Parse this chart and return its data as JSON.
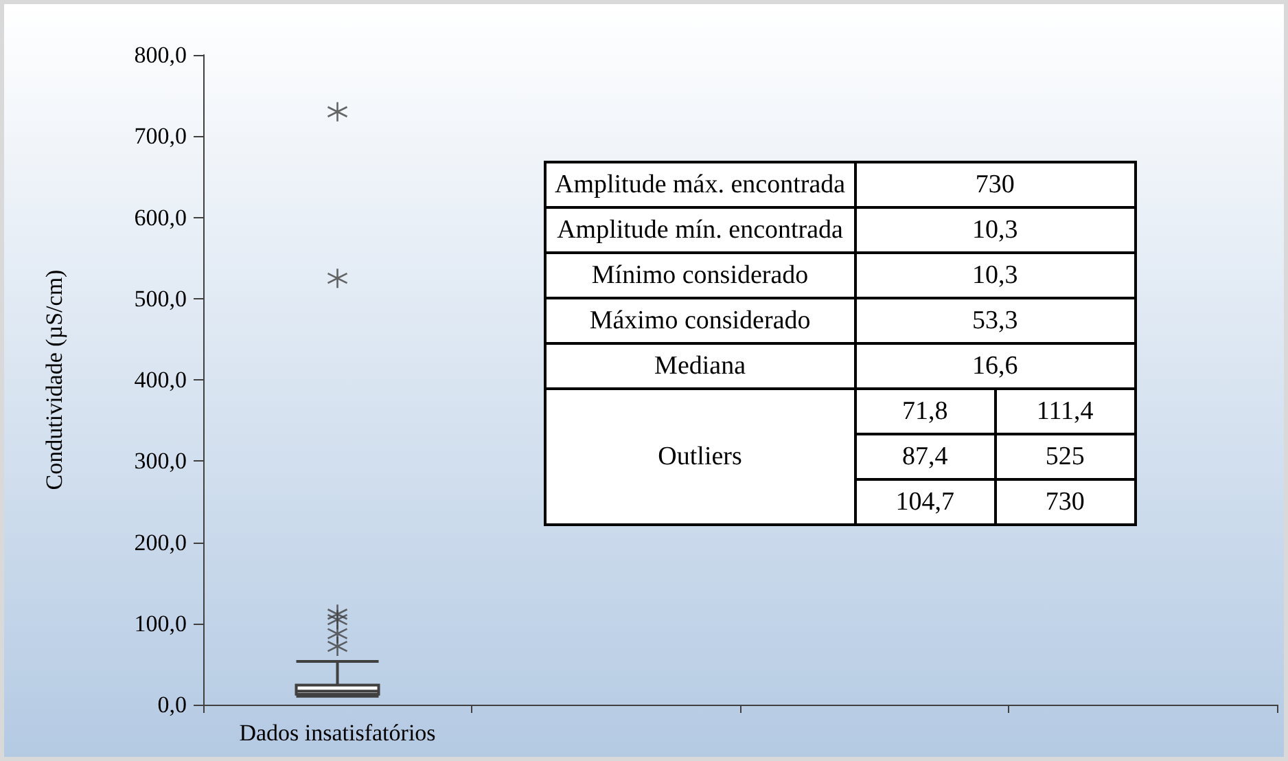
{
  "chart_data": {
    "type": "box",
    "ylabel": "Condutividade (µS/cm)",
    "categories": [
      "Dados insatisfatórios",
      null,
      null,
      null
    ],
    "boxes": [
      {
        "low": 10.3,
        "q1": 13,
        "median": 16.6,
        "q3": 24,
        "high": 53.3,
        "outliers": [
          71.8,
          87.4,
          104.7,
          111.4,
          525,
          730
        ]
      },
      null,
      null,
      null
    ],
    "color": "#404040",
    "ylim": [
      0,
      800
    ],
    "yticks": [
      {
        "value": 0,
        "label": "0,0"
      },
      {
        "value": 100,
        "label": "100,0"
      },
      {
        "value": 200,
        "label": "200,0"
      },
      {
        "value": 300,
        "label": "300,0"
      },
      {
        "value": 400,
        "label": "400,0"
      },
      {
        "value": 500,
        "label": "500,0"
      },
      {
        "value": 600,
        "label": "600,0"
      },
      {
        "value": 700,
        "label": "700,0"
      },
      {
        "value": 800,
        "label": "800,0"
      }
    ],
    "grid": false,
    "marker": "star",
    "annotations": [
      "Amplitude máx. encontrada",
      "730",
      "Amplitude mín. encontrada",
      "10,3",
      "Mínimo considerado",
      "10,3",
      "Máximo considerado",
      "53,3",
      "Mediana",
      "16,6",
      "Outliers",
      "71,8",
      "111,4",
      "87,4",
      "525",
      "104,7",
      "730"
    ]
  }
}
